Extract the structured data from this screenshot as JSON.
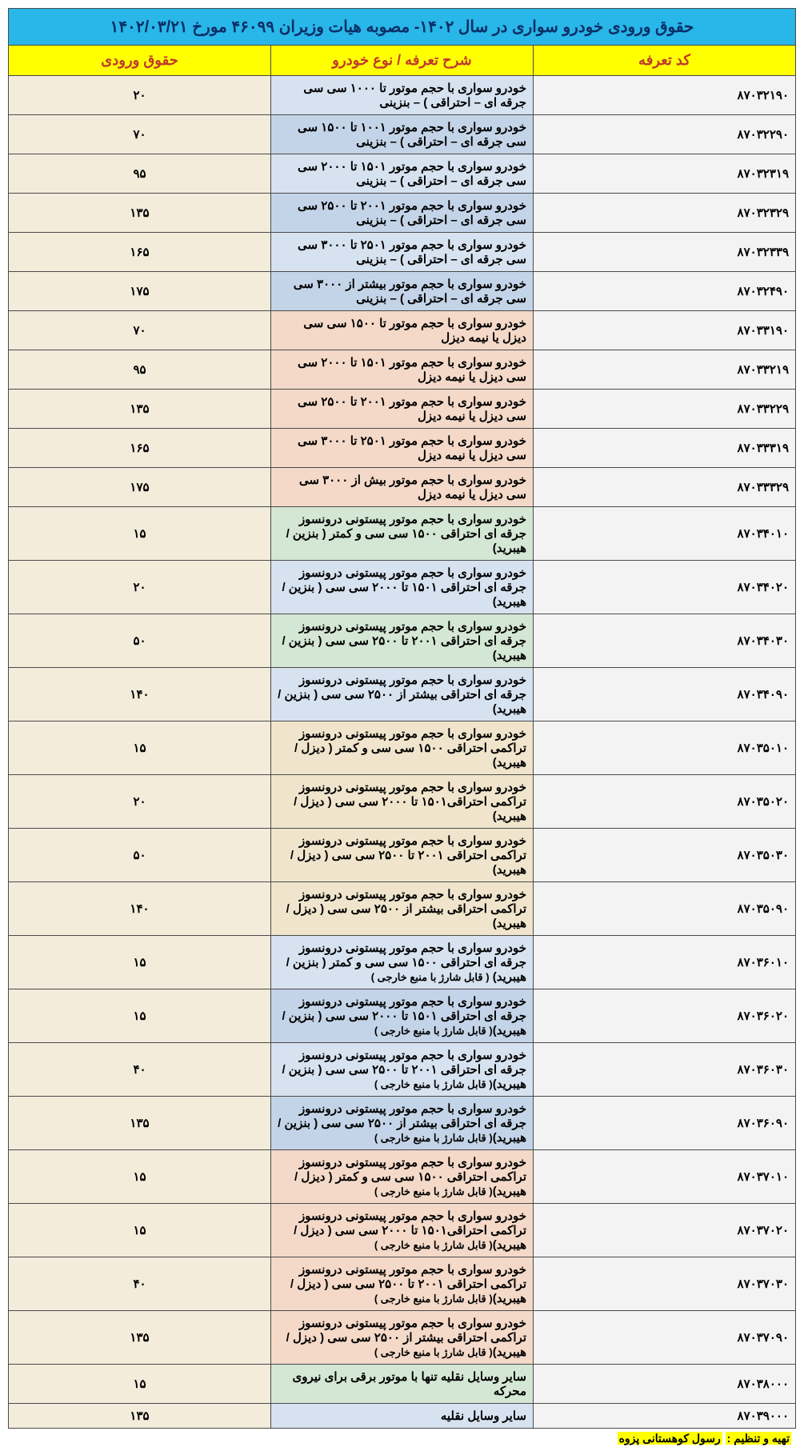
{
  "title": "حقوق ورودی خودرو سواری در سال ۱۴۰۲- مصوبه  هیات وزیران ۴۶۰۹۹ مورخ ۱۴۰۲/۰۳/۲۱",
  "headers": {
    "code": "کد تعرفه",
    "desc": "شرح تعرفه / نوع خودرو",
    "duty": "حقوق ورودی"
  },
  "colors": {
    "title_bg": "#29b6e8",
    "header_bg": "#ffff00",
    "blue_light": "#d6e2f0",
    "blue_mid": "#c4d4e8",
    "peach": "#f4d9c8",
    "green_light": "#d4e6d4",
    "tan": "#f0e5cc",
    "duty_col": "#f3ecdb",
    "code_col": "#f3f3f3"
  },
  "rows": [
    {
      "code": "۸۷۰۳۲۱۹۰",
      "desc": "خودرو سواری با حجم موتور تا ۱۰۰۰ سی سی جرقه ای – احتراقی ) – بنزینی",
      "duty": "۲۰",
      "bg": "#d6e2f0"
    },
    {
      "code": "۸۷۰۳۲۲۹۰",
      "desc": "خودرو سواری با حجم موتور  ۱۰۰۱ تا ۱۵۰۰ سی سی جرقه ای – احتراقی ) – بنزینی",
      "duty": "۷۰",
      "bg": "#c4d4e8"
    },
    {
      "code": "۸۷۰۳۲۳۱۹",
      "desc": "خودرو سواری با حجم موتور  ۱۵۰۱ تا ۲۰۰۰ سی سی جرقه ای – احتراقی ) – بنزینی",
      "duty": "۹۵",
      "bg": "#d6e2f0"
    },
    {
      "code": "۸۷۰۳۲۳۲۹",
      "desc": "خودرو سواری با حجم موتور  ۲۰۰۱ تا ۲۵۰۰ سی سی جرقه ای – احتراقی ) – بنزینی",
      "duty": "۱۳۵",
      "bg": "#c4d4e8"
    },
    {
      "code": "۸۷۰۳۲۳۳۹",
      "desc": "خودرو سواری با حجم موتور  ۲۵۰۱ تا ۳۰۰۰ سی سی جرقه ای – احتراقی ) – بنزینی",
      "duty": "۱۶۵",
      "bg": "#d6e2f0"
    },
    {
      "code": "۸۷۰۳۲۴۹۰",
      "desc": "خودرو سواری با حجم موتور بیشتر از ۳۰۰۰ سی سی جرقه ای – احتراقی ) – بنزینی",
      "duty": "۱۷۵",
      "bg": "#c4d4e8"
    },
    {
      "code": "۸۷۰۳۳۱۹۰",
      "desc": "خودرو سواری با حجم موتور تا ۱۵۰۰ سی سی دیزل یا نیمه دیزل",
      "duty": "۷۰",
      "bg": "#f4d9c8"
    },
    {
      "code": "۸۷۰۳۳۲۱۹",
      "desc": "خودرو سواری با حجم موتور ۱۵۰۱ تا ۲۰۰۰ سی سی دیزل یا نیمه دیزل",
      "duty": "۹۵",
      "bg": "#f4d9c8"
    },
    {
      "code": "۸۷۰۳۳۲۲۹",
      "desc": "خودرو سواری با حجم موتور ۲۰۰۱ تا ۲۵۰۰ سی سی دیزل یا نیمه دیزل",
      "duty": "۱۳۵",
      "bg": "#f4d9c8"
    },
    {
      "code": "۸۷۰۳۳۳۱۹",
      "desc": "خودرو سواری با حجم موتور ۲۵۰۱ تا ۳۰۰۰ سی سی دیزل یا نیمه دیزل",
      "duty": "۱۶۵",
      "bg": "#f4d9c8"
    },
    {
      "code": "۸۷۰۳۳۳۲۹",
      "desc": "خودرو سواری با حجم موتور  بیش از ۳۰۰۰ سی سی دیزل یا نیمه دیزل",
      "duty": "۱۷۵",
      "bg": "#f4d9c8"
    },
    {
      "code": "۸۷۰۳۴۰۱۰",
      "desc": "خودرو سواری با حجم موتور پیستونی درونسوز جرقه ای احتراقی ۱۵۰۰ سی سی  و کمتر ( بنزین /هیبرید)",
      "duty": "۱۵",
      "bg": "#d4e6d4"
    },
    {
      "code": "۸۷۰۳۴۰۲۰",
      "desc": "خودرو سواری با حجم موتور پیستونی درونسوز جرقه ای احتراقی ۱۵۰۱ تا ۲۰۰۰ سی سی  ( بنزین /هیبرید)",
      "duty": "۲۰",
      "bg": "#d6e2f0"
    },
    {
      "code": "۸۷۰۳۴۰۳۰",
      "desc": "خودرو سواری با حجم موتور پیستونی درونسوز جرقه ای احتراقی ۲۰۰۱ تا ۲۵۰۰ سی سی  ( بنزین /هیبرید)",
      "duty": "۵۰",
      "bg": "#d4e6d4"
    },
    {
      "code": "۸۷۰۳۴۰۹۰",
      "desc": "خودرو سواری با حجم موتور پیستونی درونسوز جرقه ای احتراقی بیشتر از ۲۵۰۰ سی سی  ( بنزین /هیبرید)",
      "duty": "۱۴۰",
      "bg": "#d6e2f0"
    },
    {
      "code": "۸۷۰۳۵۰۱۰",
      "desc": "خودرو سواری با حجم موتور پیستونی درونسوز تراکمی احتراقی ۱۵۰۰ سی سی  و کمتر ( دیزل /هیبرید)",
      "duty": "۱۵",
      "bg": "#f0e5cc"
    },
    {
      "code": "۸۷۰۳۵۰۲۰",
      "desc": "خودرو سواری با حجم موتور پیستونی درونسوز تراکمی احتراقی۱۵۰۱ تا ۲۰۰۰ سی سی  ( دیزل /هیبرید)",
      "duty": "۲۰",
      "bg": "#f0e5cc"
    },
    {
      "code": "۸۷۰۳۵۰۳۰",
      "desc": "خودرو سواری با حجم موتور پیستونی درونسوز تراکمی احتراقی ۲۰۰۱ تا ۲۵۰۰ سی سی ( دیزل /هیبرید)",
      "duty": "۵۰",
      "bg": "#f0e5cc"
    },
    {
      "code": "۸۷۰۳۵۰۹۰",
      "desc": "خودرو سواری با حجم موتور پیستونی درونسوز تراکمی احتراقی بیشتر از ۲۵۰۰ سی سی ( دیزل /هیبرید)",
      "duty": "۱۴۰",
      "bg": "#f0e5cc"
    },
    {
      "code": "۸۷۰۳۶۰۱۰",
      "desc": "خودرو سواری با حجم موتور پیستونی درونسوز جرقه ای احتراقی ۱۵۰۰ سی سی  و کمتر ( بنزین /هیبرید) <span class='desc-small'>( قابل شارژ با منبع خارجی )</span>",
      "duty": "۱۵",
      "bg": "#d6e2f0",
      "html": true
    },
    {
      "code": "۸۷۰۳۶۰۲۰",
      "desc": "خودرو سواری با حجم موتور پیستونی درونسوز جرقه ای احتراقی ۱۵۰۱ تا ۲۰۰۰ سی سی ( بنزین /هیبرید)<span class='desc-small'>( قابل شارژ با منبع خارجی )</span>",
      "duty": "۱۵",
      "bg": "#c4d4e8",
      "html": true
    },
    {
      "code": "۸۷۰۳۶۰۳۰",
      "desc": "خودرو سواری با حجم موتور پیستونی درونسوز جرقه ای احتراقی ۲۰۰۱ تا ۲۵۰۰ سی سی  ( بنزین /هیبرید)<span class='desc-small'>( قابل شارژ با منبع خارجی )</span>",
      "duty": "۴۰",
      "bg": "#d6e2f0",
      "html": true
    },
    {
      "code": "۸۷۰۳۶۰۹۰",
      "desc": "خودرو سواری با حجم موتور پیستونی درونسوز جرقه ای احتراقی بیشتر از ۲۵۰۰ سی سی ( بنزین /هیبرید)<span class='desc-small'>( قابل شارژ با منبع خارجی )</span>",
      "duty": "۱۳۵",
      "bg": "#c4d4e8",
      "html": true
    },
    {
      "code": "۸۷۰۳۷۰۱۰",
      "desc": "خودرو سواری با حجم موتور پیستونی درونسوز تراکمی احتراقی ۱۵۰۰ سی سی  و کمتر ( دیزل /هیبرید)<span class='desc-small'>( قابل شارژ با منبع خارجی )</span>",
      "duty": "۱۵",
      "bg": "#f4d9c8",
      "html": true
    },
    {
      "code": "۸۷۰۳۷۰۲۰",
      "desc": "خودرو سواری با حجم موتور پیستونی درونسوز تراکمی احتراقی۱۵۰۱ تا ۲۰۰۰ سی سی  ( دیزل /هیبرید)<span class='desc-small'>( قابل شارژ با منبع خارجی )</span>",
      "duty": "۱۵",
      "bg": "#f4d9c8",
      "html": true
    },
    {
      "code": "۸۷۰۳۷۰۳۰",
      "desc": "خودرو سواری با حجم موتور پیستونی درونسوز تراکمی احتراقی ۲۰۰۱ تا ۲۵۰۰ سی سی  ( دیزل /هیبرید)<span class='desc-small'>( قابل شارژ با منبع خارجی )</span>",
      "duty": "۴۰",
      "bg": "#f4d9c8",
      "html": true
    },
    {
      "code": "۸۷۰۳۷۰۹۰",
      "desc": "خودرو سواری با حجم موتور پیستونی درونسوز تراکمی احتراقی بیشتر از ۲۵۰۰ سی سی ( دیزل /هیبرید)<span class='desc-small'>( قابل شارژ با منبع خارجی )</span>",
      "duty": "۱۳۵",
      "bg": "#f4d9c8",
      "html": true
    },
    {
      "code": "۸۷۰۳۸۰۰۰",
      "desc": "سایر وسایل نقلیه تنها با موتور برقی برای نیروی محرکه",
      "duty": "۱۵",
      "bg": "#d4e6d4"
    },
    {
      "code": "۸۷۰۳۹۰۰۰",
      "desc": "سایر وسایل نقلیه",
      "duty": "۱۳۵",
      "bg": "#d6e2f0"
    }
  ],
  "footer_label": "تهیه و تنظیم :",
  "footer_author": "رسول کوهستانی پزوه"
}
